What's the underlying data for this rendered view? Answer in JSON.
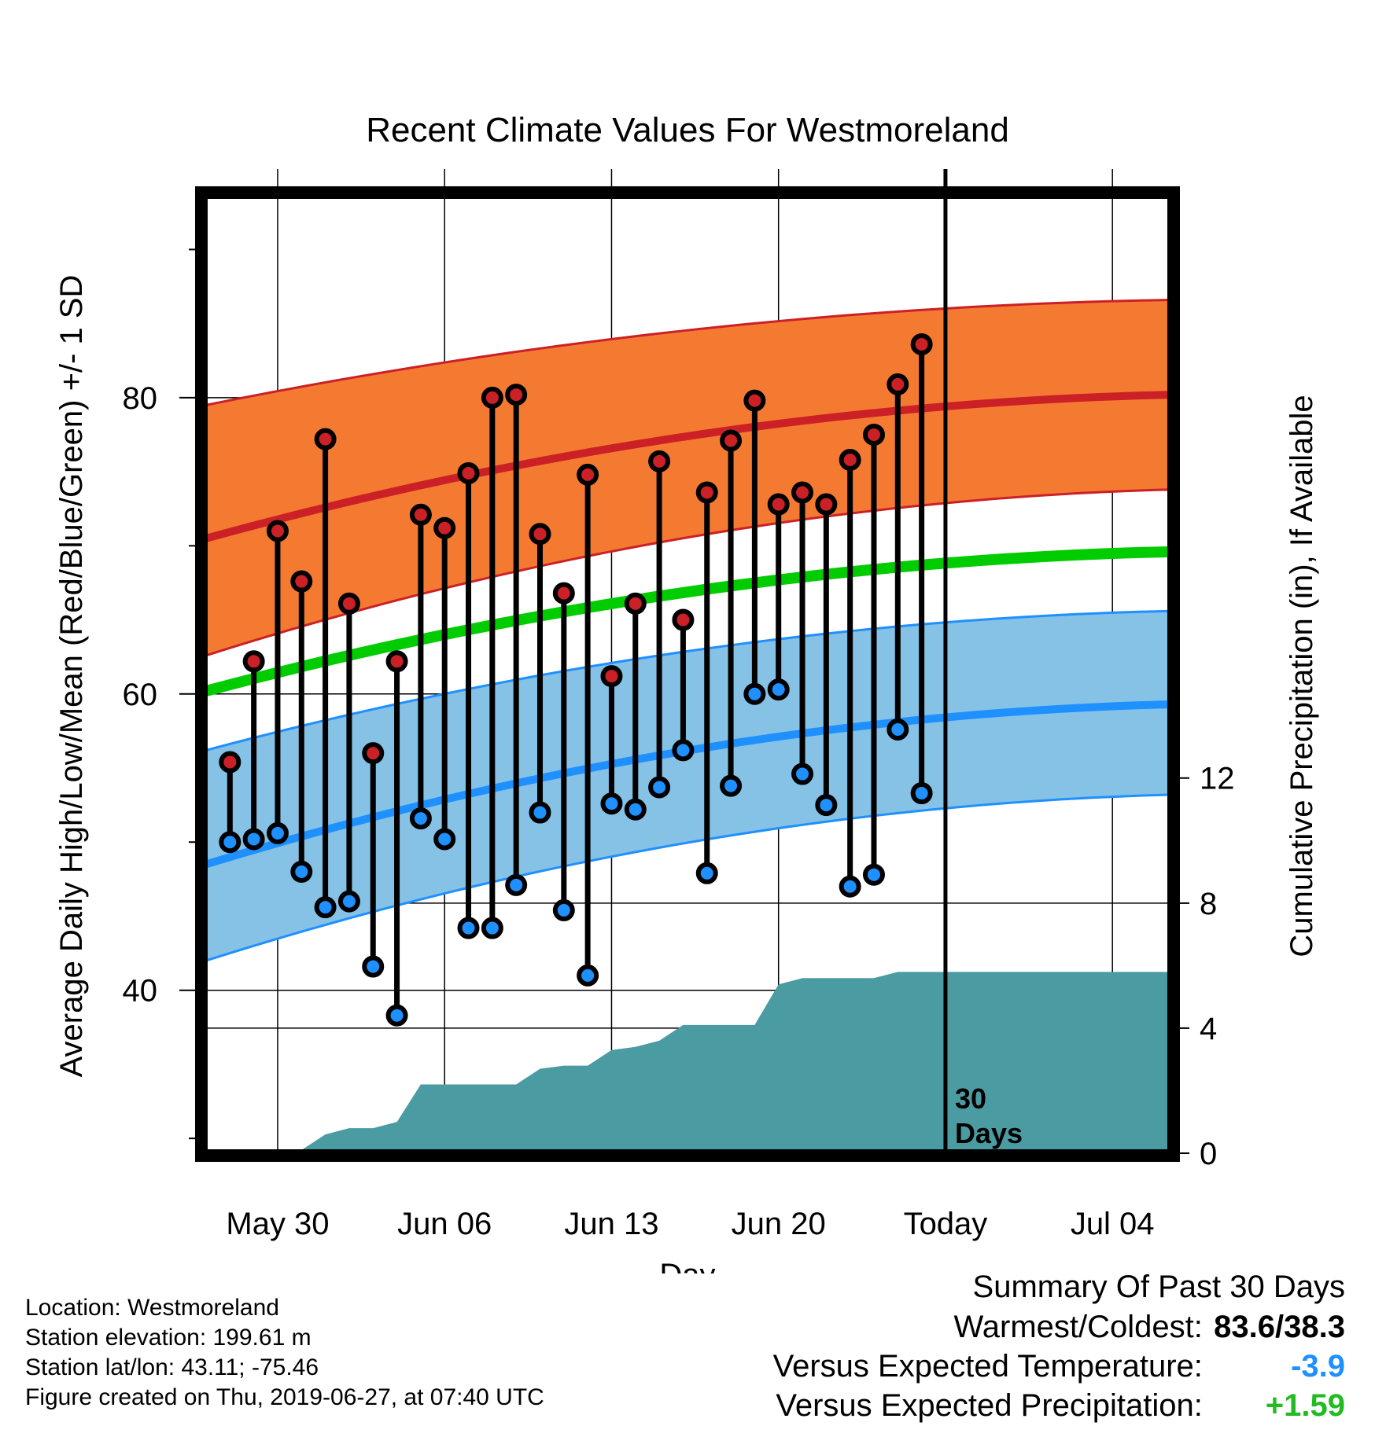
{
  "chart_data": {
    "type": "line",
    "title": "Recent Climate Values For Westmoreland",
    "xlabel": "Day",
    "ylabel_left": "Average Daily High/Low/Mean (Red/Blue/Green) +/- 1 SD",
    "ylabel_right": "Cumulative Precipitation (in), If Available",
    "x_ticks": [
      "May 30",
      "Jun 06",
      "Jun 13",
      "Jun 20",
      "Today",
      "Jul 04"
    ],
    "y_ticks_left": [
      40,
      60,
      80
    ],
    "y_ticks_right": [
      0,
      4,
      8,
      12
    ],
    "ylim_left": [
      29,
      94
    ],
    "ylim_right": [
      0,
      30.8
    ],
    "xlim_days": [
      -31,
      9.5
    ],
    "today_marker_label": "30\nDays",
    "colors": {
      "high_band": "#f47a32",
      "high_mean_line": "#cc2027",
      "low_band": "#86c1e6",
      "low_mean_line": "#1e90ff",
      "mean_line": "#00cc00",
      "precip": "#4a9ba2",
      "high_dot": "#cc2027",
      "low_dot": "#1e90ff"
    },
    "climatology": {
      "days": [
        -31,
        9.5
      ],
      "high_mean": [
        70.5,
        80.2
      ],
      "high_upper": [
        79.5,
        86.6
      ],
      "high_lower": [
        62.6,
        73.8
      ],
      "mean": [
        60.2,
        69.6
      ],
      "low_mean": [
        48.5,
        59.3
      ],
      "low_upper": [
        56.2,
        65.6
      ],
      "low_lower": [
        42.0,
        53.2
      ]
    },
    "observations": {
      "days": [
        -30,
        -29,
        -28,
        -27,
        -26,
        -25,
        -24,
        -23,
        -22,
        -21,
        -20,
        -19,
        -18,
        -17,
        -16,
        -15,
        -14,
        -13,
        -12,
        -11,
        -10,
        -9,
        -8,
        -7,
        -6,
        -5,
        -4,
        -3,
        -2,
        -1
      ],
      "high": [
        55.4,
        62.2,
        71.0,
        67.6,
        77.2,
        66.1,
        56.0,
        62.2,
        72.1,
        71.2,
        74.9,
        80.0,
        80.2,
        70.8,
        66.8,
        74.8,
        61.2,
        66.1,
        75.7,
        65.0,
        73.6,
        77.1,
        79.8,
        72.8,
        73.6,
        72.8,
        75.8,
        77.5,
        80.9,
        83.6
      ],
      "low": [
        50.0,
        50.2,
        50.6,
        48.0,
        45.6,
        46.0,
        41.6,
        38.3,
        51.6,
        50.2,
        44.2,
        44.2,
        47.1,
        52.0,
        45.4,
        41.0,
        52.6,
        52.2,
        53.7,
        56.2,
        47.9,
        53.8,
        60.0,
        60.3,
        54.6,
        52.5,
        47.0,
        47.8,
        57.6,
        53.3
      ]
    },
    "precip_cumulative": {
      "days": [
        -28,
        -27,
        -26,
        -25,
        -24,
        -23,
        -22,
        -21,
        -20,
        -19,
        -18,
        -17,
        -16,
        -15,
        -14,
        -13,
        -12,
        -11,
        -10,
        -9,
        -8,
        -7,
        -6,
        -5,
        -4,
        -3,
        -2,
        -1,
        0,
        9.5
      ],
      "values": [
        0,
        0.1,
        0.6,
        0.8,
        0.8,
        1.0,
        2.2,
        2.2,
        2.2,
        2.2,
        2.2,
        2.7,
        2.8,
        2.8,
        3.3,
        3.4,
        3.6,
        4.1,
        4.1,
        4.1,
        4.1,
        5.4,
        5.6,
        5.6,
        5.6,
        5.6,
        5.8,
        5.8,
        5.8,
        5.8
      ]
    }
  },
  "info": {
    "location": "Location: Westmoreland",
    "elevation": "Station elevation: 199.61 m",
    "latlon": "Station lat/lon: 43.11; -75.46",
    "created": "Figure created on Thu, 2019-06-27, at 07:40 UTC"
  },
  "summary": {
    "heading": "Summary Of Past 30 Days",
    "warm_cold_label": "Warmest/Coldest:",
    "warm_cold_value": "83.6/38.3",
    "temp_label": "Versus Expected Temperature:",
    "temp_value": "-3.9",
    "temp_color": "#1e90ff",
    "precip_label": "Versus Expected Precipitation:",
    "precip_value": "+1.59",
    "precip_color": "#22bb22"
  }
}
